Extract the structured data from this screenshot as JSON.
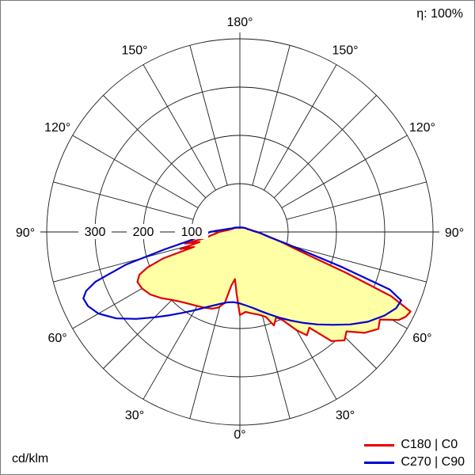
{
  "eta_label": "η: 100%",
  "unit_label": "cd/klm",
  "legend": [
    {
      "label": "C180 | C0",
      "color": "#e10000"
    },
    {
      "label": "C270 | C90",
      "color": "#0000d0"
    }
  ],
  "chart_data": {
    "type": "polar",
    "subtype": "luminous-intensity-distribution",
    "unit": "cd/klm",
    "efficiency_text": "η: 100%",
    "radial_ticks": [
      100,
      200,
      300
    ],
    "radial_max": 400,
    "angle_step_deg": 15,
    "angle_labels": {
      "0": "0°",
      "30": "30°",
      "60": "60°",
      "90": "90°",
      "120": "120°",
      "150": "150°",
      "180": "180°"
    },
    "grid": true,
    "legend_position": "bottom-right",
    "fill_color": "#ffffa6",
    "series": [
      {
        "name": "C180 | C0",
        "color": "#e10000",
        "fill": "#ffffa6",
        "left": {
          "plane": "C180",
          "points": [
            [
              0,
              172
            ],
            [
              3,
              128
            ],
            [
              6,
              98
            ],
            [
              9,
              112
            ],
            [
              12,
              150
            ],
            [
              16,
              163
            ],
            [
              20,
              169
            ],
            [
              25,
              173
            ],
            [
              30,
              177
            ],
            [
              35,
              182
            ],
            [
              40,
              189
            ],
            [
              45,
              199
            ],
            [
              50,
              213
            ],
            [
              55,
              226
            ],
            [
              60,
              234
            ],
            [
              64,
              236
            ],
            [
              67,
              226
            ],
            [
              69,
              205
            ],
            [
              71,
              168
            ],
            [
              72,
              100
            ],
            [
              74,
              128
            ],
            [
              76,
              86
            ],
            [
              78,
              116
            ],
            [
              80,
              72
            ],
            [
              83,
              61
            ],
            [
              86,
              51
            ],
            [
              90,
              43
            ],
            [
              94,
              32
            ],
            [
              98,
              26
            ],
            [
              103,
              22
            ],
            [
              108,
              19
            ],
            [
              115,
              16
            ],
            [
              125,
              14
            ],
            [
              135,
              12
            ],
            [
              145,
              11
            ],
            [
              155,
              10
            ],
            [
              165,
              9
            ],
            [
              172,
              9
            ],
            [
              180,
              9
            ]
          ]
        },
        "right": {
          "plane": "C0",
          "points": [
            [
              0,
              172
            ],
            [
              4,
              166
            ],
            [
              8,
              170
            ],
            [
              13,
              176
            ],
            [
              17,
              184
            ],
            [
              20,
              206
            ],
            [
              23,
              192
            ],
            [
              26,
              204
            ],
            [
              30,
              235
            ],
            [
              33,
              255
            ],
            [
              36,
              245
            ],
            [
              40,
              295
            ],
            [
              44,
              312
            ],
            [
              47,
              302
            ],
            [
              51,
              332
            ],
            [
              55,
              350
            ],
            [
              58,
              342
            ],
            [
              61,
              376
            ],
            [
              63,
              386
            ],
            [
              65,
              390
            ],
            [
              67,
              340
            ],
            [
              69,
              235
            ],
            [
              71,
              158
            ],
            [
              73,
              120
            ],
            [
              76,
              92
            ],
            [
              79,
              70
            ],
            [
              82,
              56
            ],
            [
              85,
              46
            ],
            [
              88,
              39
            ],
            [
              90,
              34
            ],
            [
              94,
              28
            ],
            [
              98,
              24
            ],
            [
              103,
              21
            ],
            [
              108,
              18
            ],
            [
              115,
              16
            ],
            [
              125,
              14
            ],
            [
              135,
              12
            ],
            [
              145,
              11
            ],
            [
              155,
              10
            ],
            [
              165,
              9
            ],
            [
              172,
              9
            ],
            [
              180,
              9
            ]
          ]
        }
      },
      {
        "name": "C270 | C90",
        "color": "#0000d0",
        "fill": "none",
        "left": {
          "plane": "C270",
          "points": [
            [
              0,
              148
            ],
            [
              5,
              146
            ],
            [
              10,
              148
            ],
            [
              15,
              154
            ],
            [
              20,
              162
            ],
            [
              25,
              173
            ],
            [
              30,
              187
            ],
            [
              35,
              204
            ],
            [
              40,
              225
            ],
            [
              45,
              250
            ],
            [
              50,
              280
            ],
            [
              55,
              312
            ],
            [
              60,
              338
            ],
            [
              64,
              350
            ],
            [
              67,
              352
            ],
            [
              69,
              341
            ],
            [
              71,
              316
            ],
            [
              74,
              246
            ],
            [
              77,
              160
            ],
            [
              80,
              108
            ],
            [
              83,
              85
            ],
            [
              86,
              72
            ],
            [
              90,
              62
            ],
            [
              94,
              45
            ],
            [
              98,
              34
            ],
            [
              103,
              27
            ],
            [
              108,
              22
            ],
            [
              115,
              18
            ],
            [
              125,
              15
            ],
            [
              135,
              13
            ],
            [
              145,
              11
            ],
            [
              155,
              10
            ],
            [
              165,
              10
            ],
            [
              172,
              9
            ],
            [
              180,
              9
            ]
          ]
        },
        "right": {
          "plane": "C90",
          "points": [
            [
              0,
              148
            ],
            [
              5,
              153
            ],
            [
              10,
              160
            ],
            [
              15,
              170
            ],
            [
              20,
              182
            ],
            [
              25,
              196
            ],
            [
              30,
              212
            ],
            [
              35,
              230
            ],
            [
              40,
              250
            ],
            [
              45,
              272
            ],
            [
              50,
              298
            ],
            [
              55,
              324
            ],
            [
              60,
              346
            ],
            [
              64,
              360
            ],
            [
              67,
              363
            ],
            [
              69,
              332
            ],
            [
              71,
              225
            ],
            [
              73,
              148
            ],
            [
              76,
              98
            ],
            [
              79,
              68
            ],
            [
              82,
              55
            ],
            [
              85,
              46
            ],
            [
              88,
              40
            ],
            [
              90,
              36
            ],
            [
              94,
              29
            ],
            [
              98,
              25
            ],
            [
              103,
              21
            ],
            [
              108,
              18
            ],
            [
              115,
              16
            ],
            [
              125,
              14
            ],
            [
              135,
              12
            ],
            [
              145,
              11
            ],
            [
              155,
              10
            ],
            [
              165,
              10
            ],
            [
              172,
              9
            ],
            [
              180,
              9
            ]
          ]
        }
      }
    ]
  }
}
